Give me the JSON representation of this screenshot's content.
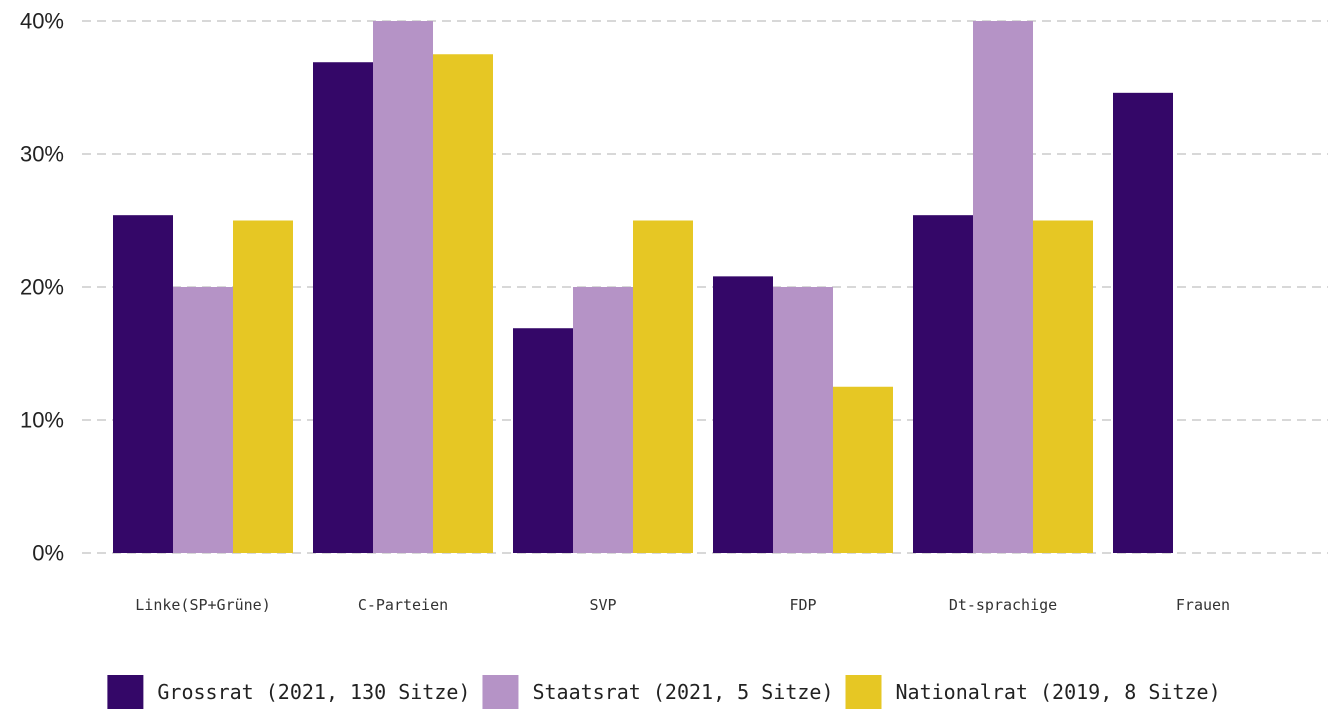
{
  "chart_data": {
    "type": "bar",
    "title": "",
    "xlabel": "",
    "ylabel": "",
    "categories": [
      "Linke(SP+Grüne)",
      "C-Parteien",
      "SVP",
      "FDP",
      "Dt-sprachige",
      "Frauen"
    ],
    "series": [
      {
        "name": "Grossrat (2021, 130 Sitze)",
        "color": "#340768",
        "values": [
          25.4,
          36.9,
          16.9,
          20.8,
          25.4,
          34.6
        ]
      },
      {
        "name": "Staatsrat (2021, 5 Sitze)",
        "color": "#b593c6",
        "values": [
          20.0,
          40.0,
          20.0,
          20.0,
          40.0,
          0
        ]
      },
      {
        "name": "Nationalrat (2019, 8 Sitze)",
        "color": "#e6c724",
        "values": [
          25.0,
          37.5,
          25.0,
          12.5,
          25.0,
          0
        ]
      }
    ],
    "ylim": [
      0,
      40
    ],
    "yticks": [
      0,
      10,
      20,
      30,
      40
    ],
    "ytick_labels": [
      "0%",
      "10%",
      "20%",
      "30%",
      "40%"
    ],
    "grid": true,
    "legend_position": "bottom"
  }
}
